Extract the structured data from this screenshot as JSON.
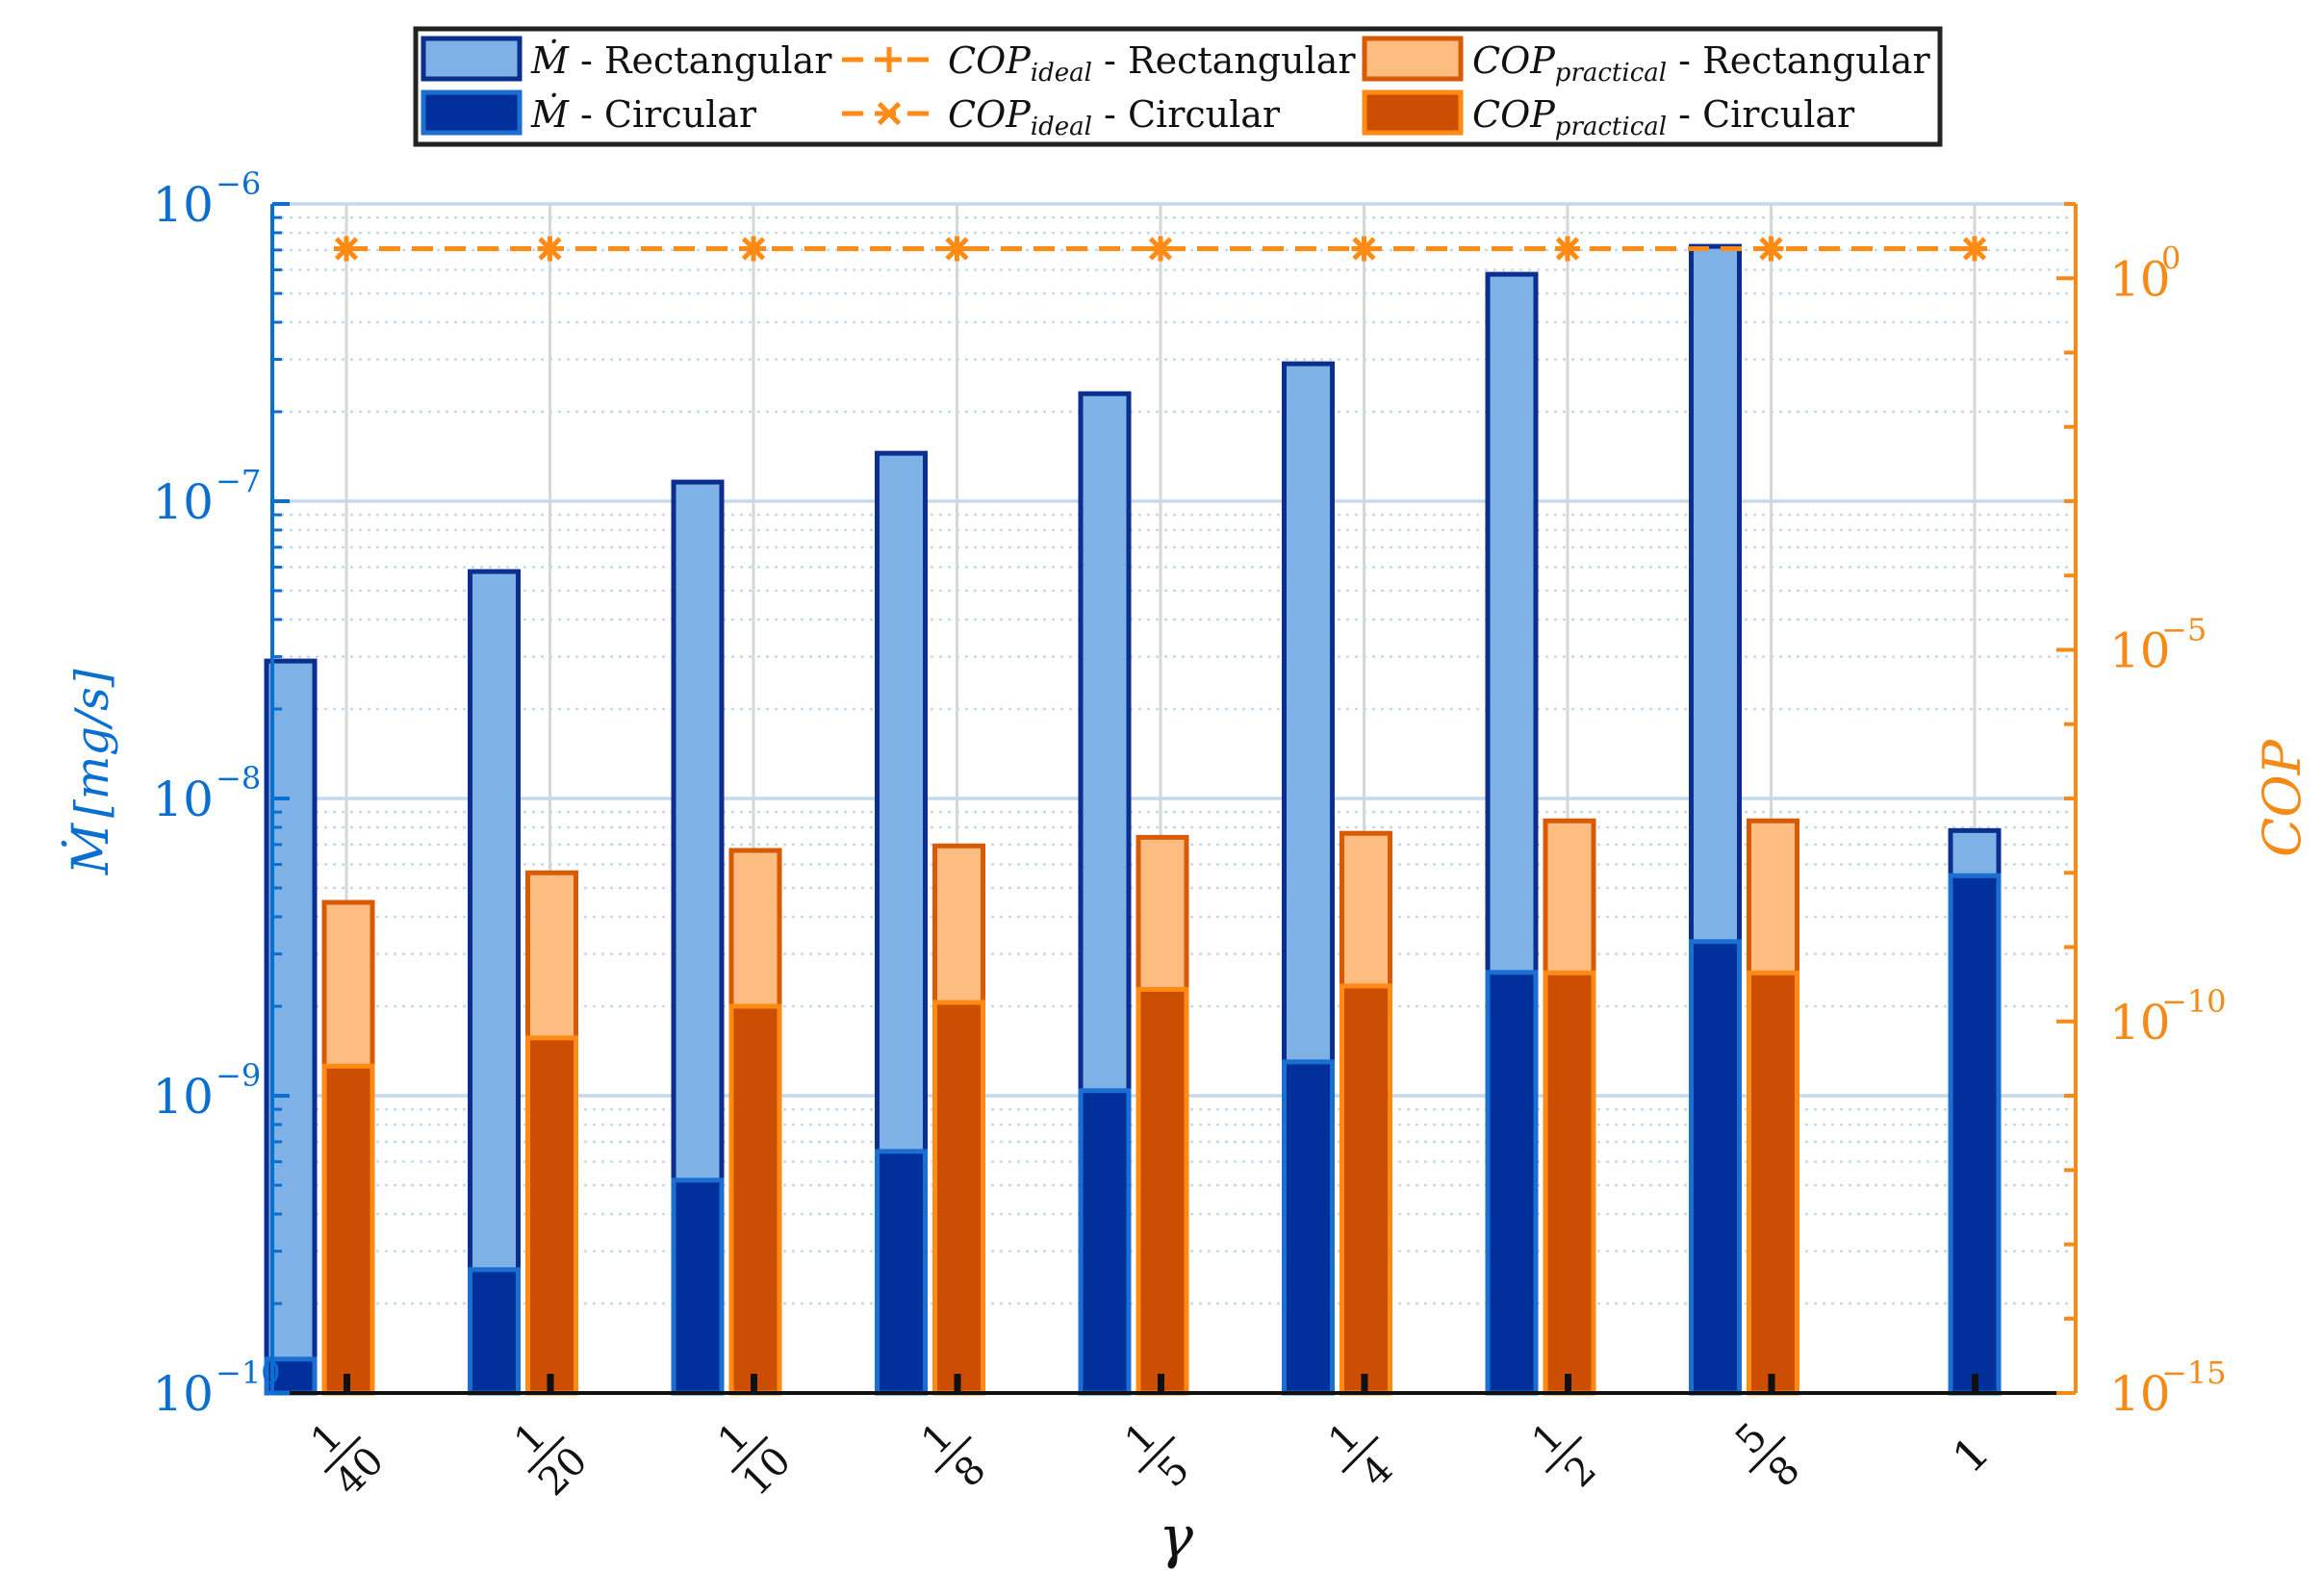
{
  "chart_data": {
    "type": "bar",
    "categories": [
      {
        "num": "1",
        "den": "40"
      },
      {
        "num": "1",
        "den": "20"
      },
      {
        "num": "1",
        "den": "10"
      },
      {
        "num": "1",
        "den": "8"
      },
      {
        "num": "1",
        "den": "5"
      },
      {
        "num": "1",
        "den": "4"
      },
      {
        "num": "1",
        "den": "2"
      },
      {
        "num": "5",
        "den": "8"
      },
      {
        "num": "1",
        "den": ""
      }
    ],
    "xlabel": "γ",
    "left_axis": {
      "label_symbol": "Ṁ",
      "label_units": "[mg/s]",
      "scale": "log",
      "ylim": [
        1e-10,
        1e-06
      ],
      "ticks": [
        {
          "base": "10",
          "exp": "−10"
        },
        {
          "base": "10",
          "exp": "−9"
        },
        {
          "base": "10",
          "exp": "−8"
        },
        {
          "base": "10",
          "exp": "−7"
        },
        {
          "base": "10",
          "exp": "−6"
        }
      ]
    },
    "right_axis": {
      "label": "COP",
      "scale": "log",
      "ylim": [
        1e-15,
        10.0
      ],
      "ticks": [
        {
          "base": "10",
          "exp": "−15",
          "value": 1e-15
        },
        {
          "base": "10",
          "exp": "−10",
          "value": 1e-10
        },
        {
          "base": "10",
          "exp": "−5",
          "value": 1e-05
        },
        {
          "base": "10",
          "exp": "0",
          "value": 1
        }
      ]
    },
    "series": [
      {
        "name": "Ṁ - Rectangular",
        "axis": "left",
        "kind": "bar",
        "values": [
          2.9e-08,
          5.8e-08,
          1.16e-07,
          1.45e-07,
          2.3e-07,
          2.9e-07,
          5.8e-07,
          7.2e-07,
          7.8e-09
        ]
      },
      {
        "name": "Ṁ - Circular",
        "axis": "left",
        "kind": "bar",
        "values": [
          1.3e-10,
          2.6e-10,
          5.2e-10,
          6.5e-10,
          1.04e-09,
          1.3e-09,
          2.6e-09,
          3.3e-09,
          5.5e-09
        ]
      },
      {
        "name": "COP_ideal - Rectangular",
        "axis": "right",
        "kind": "line",
        "marker": "+",
        "values": [
          2.5,
          2.5,
          2.5,
          2.5,
          2.5,
          2.5,
          2.5,
          2.5,
          2.5
        ]
      },
      {
        "name": "COP_ideal - Circular",
        "axis": "right",
        "kind": "line",
        "marker": "x",
        "values": [
          2.5,
          2.5,
          2.5,
          2.5,
          2.5,
          2.5,
          2.5,
          2.5,
          2.5
        ]
      },
      {
        "name": "COP_practical - Rectangular",
        "axis": "right",
        "kind": "bar",
        "values": [
          4e-09,
          1e-08,
          2e-08,
          2.3e-08,
          3e-08,
          3.4e-08,
          5e-08,
          5e-08,
          null
        ]
      },
      {
        "name": "COP_practical - Circular",
        "axis": "right",
        "kind": "bar",
        "values": [
          2.5e-11,
          6e-11,
          1.6e-10,
          1.8e-10,
          2.7e-10,
          3e-10,
          4.5e-10,
          4.5e-10,
          null
        ]
      }
    ],
    "legend": {
      "position": "top",
      "entries": [
        {
          "sym": "Ṁ",
          "sub": "",
          "tail": " - Rectangular"
        },
        {
          "sym": "COP",
          "sub": "ideal",
          "tail": " - Rectangular"
        },
        {
          "sym": "COP",
          "sub": "practical",
          "tail": " - Rectangular"
        },
        {
          "sym": "Ṁ",
          "sub": "",
          "tail": " - Circular"
        },
        {
          "sym": "COP",
          "sub": "ideal",
          "tail": " - Circular"
        },
        {
          "sym": "COP",
          "sub": "practical",
          "tail": " - Circular"
        }
      ]
    },
    "colors": {
      "rect_fill": "#7eb1e6",
      "rect_edge": "#0b2e8f",
      "circ_fill": "#02309a",
      "circ_edge": "#1a6fd0",
      "copr_fill": "#fdbd80",
      "copr_edge": "#d85a05",
      "copc_fill": "#cc4e03",
      "copc_edge": "#ff8a14",
      "ideal_line": "#ff8a14",
      "left_axis": "#0a6fd0",
      "right_axis": "#f58a17",
      "grid_major": "#c5d9ee",
      "grid_minor": "#c5d9ee"
    }
  }
}
